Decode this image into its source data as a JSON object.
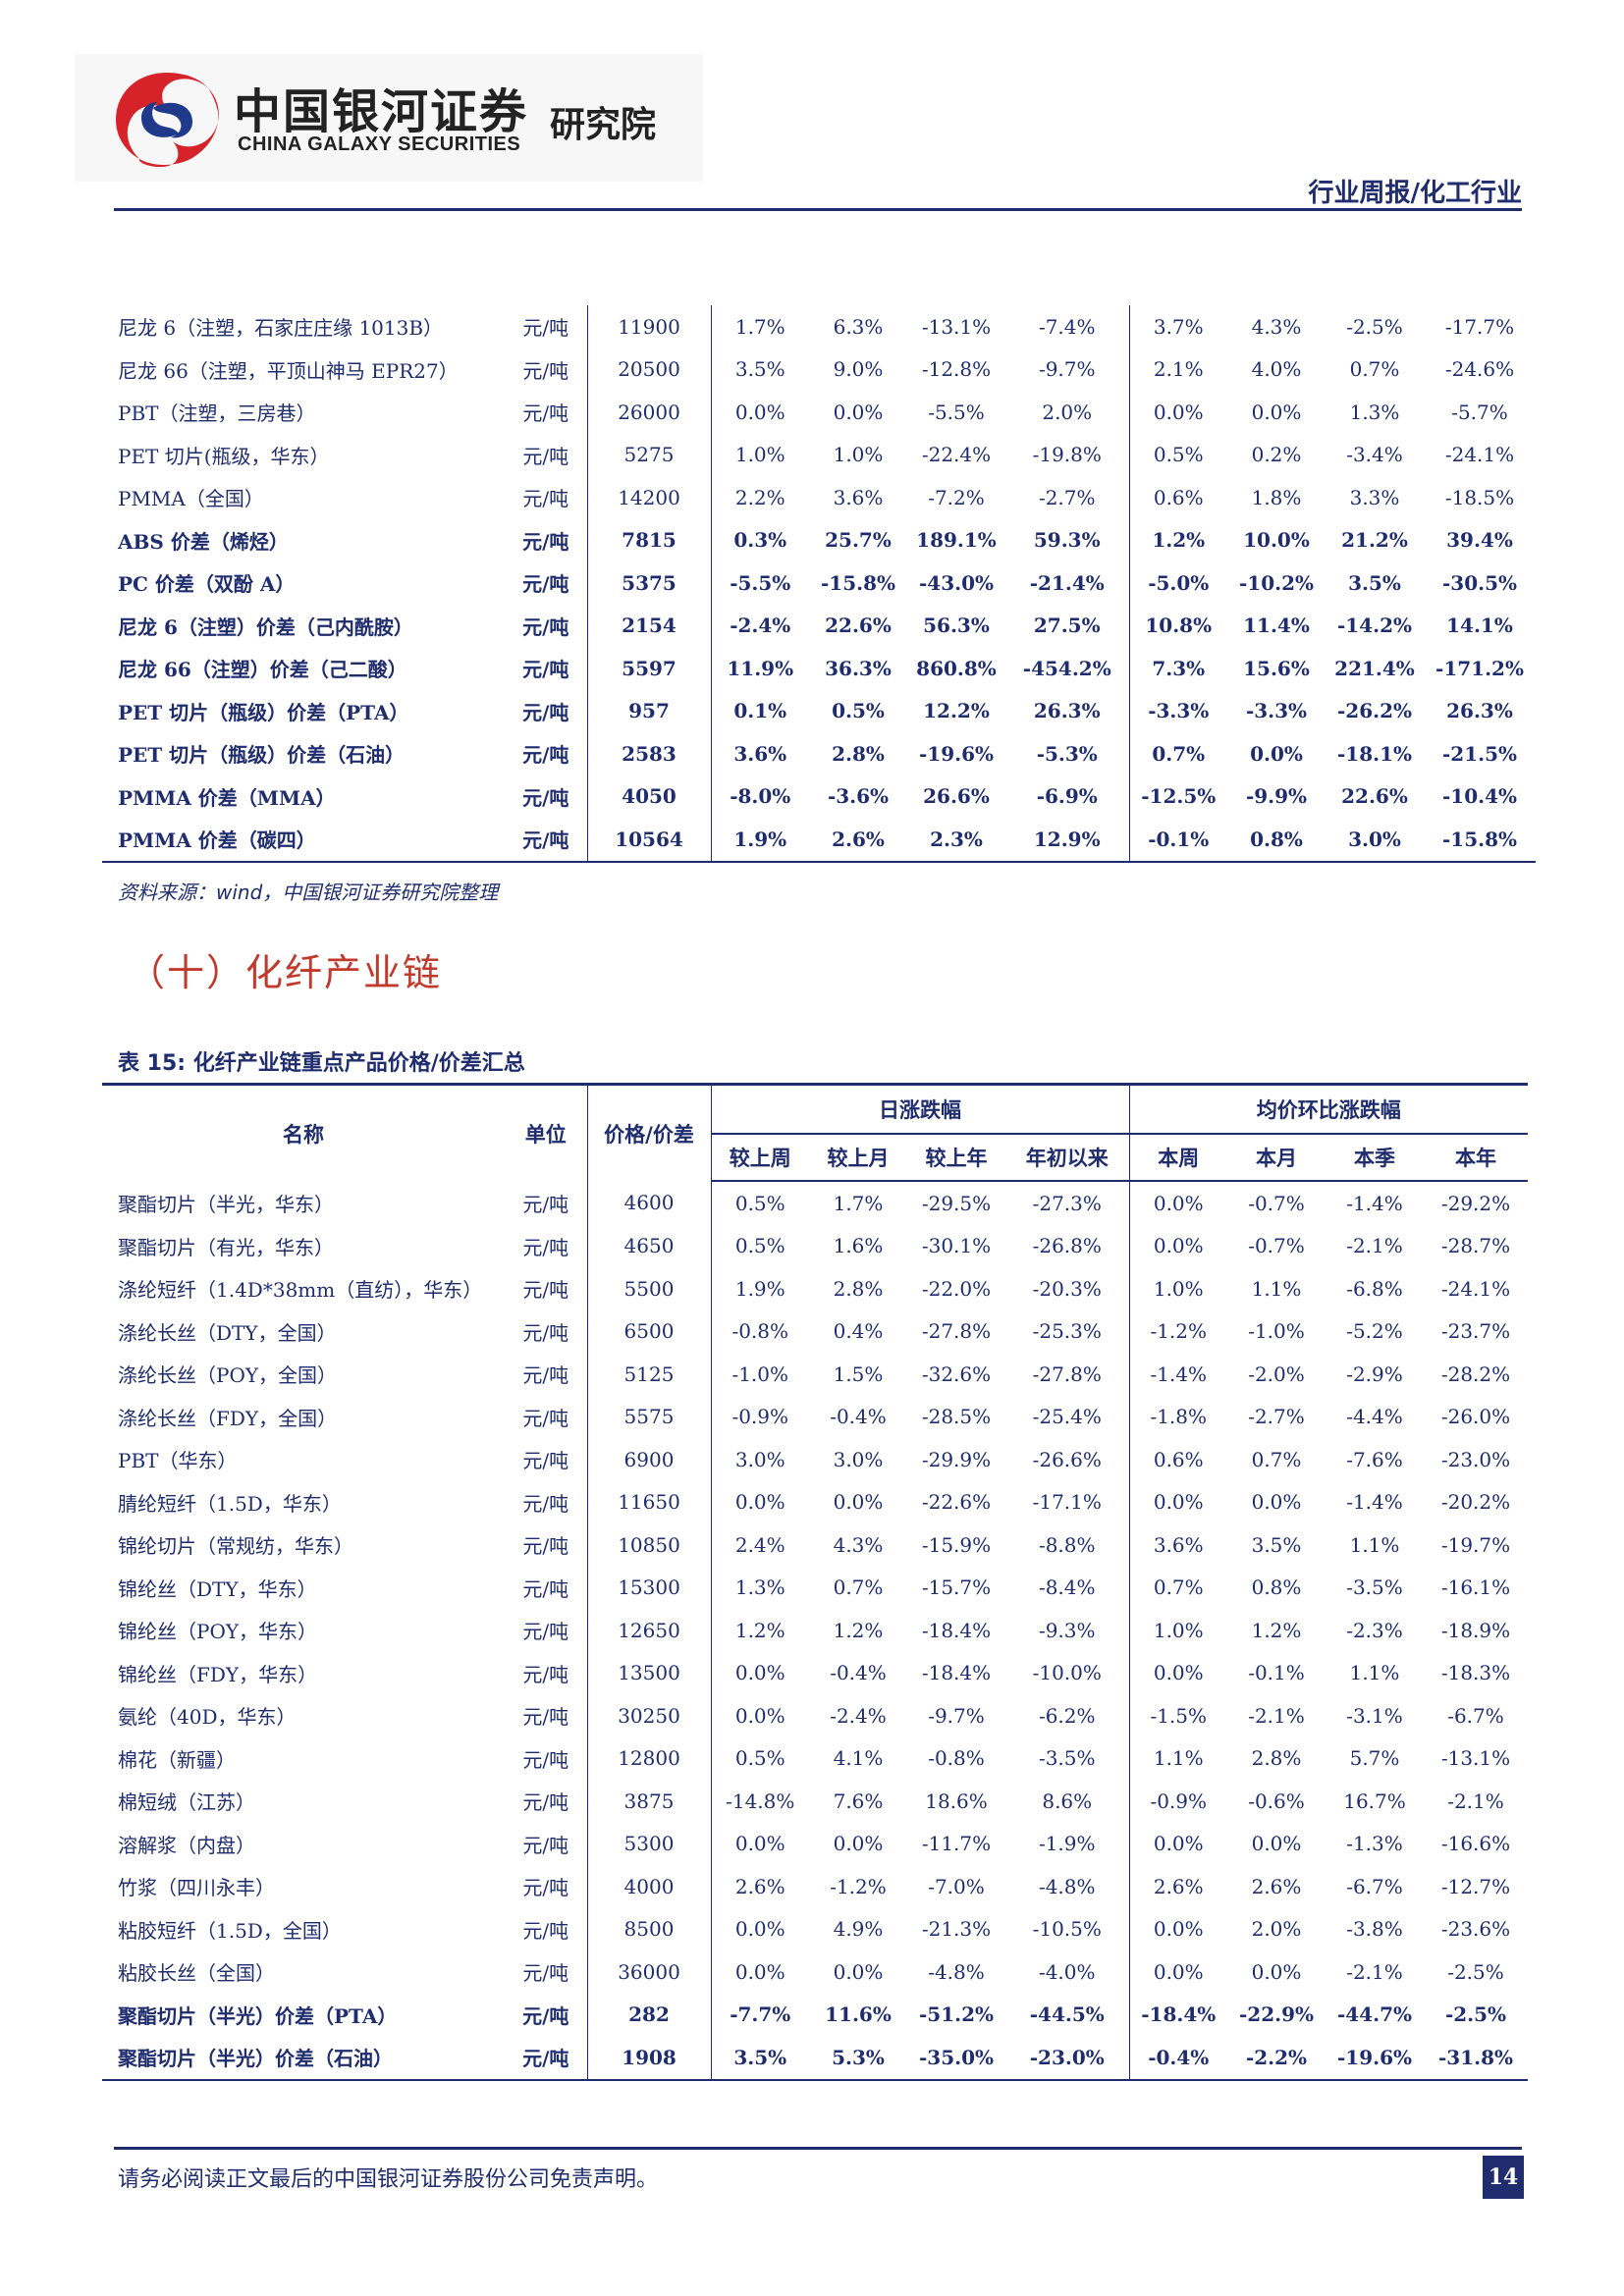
{
  "header": {
    "logo_cn": "中国银河证券",
    "logo_en": "CHINA GALAXY SECURITIES",
    "institute": "研究院",
    "report_type": "行业周报/化工行业",
    "logo_colors": {
      "red": "#d6232a",
      "blue": "#1f3a8a"
    }
  },
  "table1": {
    "rows": [
      {
        "name": "尼龙 6（注塑，石家庄庄缘 1013B）",
        "unit": "元/吨",
        "price": "11900",
        "v": [
          "1.7%",
          "6.3%",
          "-13.1%",
          "-7.4%",
          "3.7%",
          "4.3%",
          "-2.5%",
          "-17.7%"
        ],
        "bold": false
      },
      {
        "name": "尼龙 66（注塑，平顶山神马 EPR27）",
        "unit": "元/吨",
        "price": "20500",
        "v": [
          "3.5%",
          "9.0%",
          "-12.8%",
          "-9.7%",
          "2.1%",
          "4.0%",
          "0.7%",
          "-24.6%"
        ],
        "bold": false
      },
      {
        "name": "PBT（注塑，三房巷）",
        "unit": "元/吨",
        "price": "26000",
        "v": [
          "0.0%",
          "0.0%",
          "-5.5%",
          "2.0%",
          "0.0%",
          "0.0%",
          "1.3%",
          "-5.7%"
        ],
        "bold": false
      },
      {
        "name": "PET 切片(瓶级，华东）",
        "unit": "元/吨",
        "price": "5275",
        "v": [
          "1.0%",
          "1.0%",
          "-22.4%",
          "-19.8%",
          "0.5%",
          "0.2%",
          "-3.4%",
          "-24.1%"
        ],
        "bold": false
      },
      {
        "name": "PMMA（全国）",
        "unit": "元/吨",
        "price": "14200",
        "v": [
          "2.2%",
          "3.6%",
          "-7.2%",
          "-2.7%",
          "0.6%",
          "1.8%",
          "3.3%",
          "-18.5%"
        ],
        "bold": false
      },
      {
        "name": "ABS 价差（烯烃）",
        "unit": "元/吨",
        "price": "7815",
        "v": [
          "0.3%",
          "25.7%",
          "189.1%",
          "59.3%",
          "1.2%",
          "10.0%",
          "21.2%",
          "39.4%"
        ],
        "bold": true
      },
      {
        "name": "PC 价差（双酚 A）",
        "unit": "元/吨",
        "price": "5375",
        "v": [
          "-5.5%",
          "-15.8%",
          "-43.0%",
          "-21.4%",
          "-5.0%",
          "-10.2%",
          "3.5%",
          "-30.5%"
        ],
        "bold": true
      },
      {
        "name": "尼龙 6（注塑）价差（己内酰胺）",
        "unit": "元/吨",
        "price": "2154",
        "v": [
          "-2.4%",
          "22.6%",
          "56.3%",
          "27.5%",
          "10.8%",
          "11.4%",
          "-14.2%",
          "14.1%"
        ],
        "bold": true
      },
      {
        "name": "尼龙 66（注塑）价差（己二酸）",
        "unit": "元/吨",
        "price": "5597",
        "v": [
          "11.9%",
          "36.3%",
          "860.8%",
          "-454.2%",
          "7.3%",
          "15.6%",
          "221.4%",
          "-171.2%"
        ],
        "bold": true
      },
      {
        "name": "PET 切片（瓶级）价差（PTA）",
        "unit": "元/吨",
        "price": "957",
        "v": [
          "0.1%",
          "0.5%",
          "12.2%",
          "26.3%",
          "-3.3%",
          "-3.3%",
          "-26.2%",
          "26.3%"
        ],
        "bold": true
      },
      {
        "name": "PET 切片（瓶级）价差（石油）",
        "unit": "元/吨",
        "price": "2583",
        "v": [
          "3.6%",
          "2.8%",
          "-19.6%",
          "-5.3%",
          "0.7%",
          "0.0%",
          "-18.1%",
          "-21.5%"
        ],
        "bold": true
      },
      {
        "name": "PMMA 价差（MMA）",
        "unit": "元/吨",
        "price": "4050",
        "v": [
          "-8.0%",
          "-3.6%",
          "26.6%",
          "-6.9%",
          "-12.5%",
          "-9.9%",
          "22.6%",
          "-10.4%"
        ],
        "bold": true
      },
      {
        "name": "PMMA 价差（碳四）",
        "unit": "元/吨",
        "price": "10564",
        "v": [
          "1.9%",
          "2.6%",
          "2.3%",
          "12.9%",
          "-0.1%",
          "0.8%",
          "3.0%",
          "-15.8%"
        ],
        "bold": true
      }
    ]
  },
  "source_note": "资料来源：wind，中国银河证券研究院整理",
  "section_title": "（十）化纤产业链",
  "table2": {
    "caption": "表 15:  化纤产业链重点产品价格/价差汇总",
    "headers": {
      "name": "名称",
      "unit": "单位",
      "price": "价格/价差",
      "group1": "日涨跌幅",
      "group2": "均价环比涨跌幅",
      "sub": [
        "较上周",
        "较上月",
        "较上年",
        "年初以来",
        "本周",
        "本月",
        "本季",
        "本年"
      ]
    },
    "rows": [
      {
        "name": "聚酯切片（半光，华东）",
        "unit": "元/吨",
        "price": "4600",
        "v": [
          "0.5%",
          "1.7%",
          "-29.5%",
          "-27.3%",
          "0.0%",
          "-0.7%",
          "-1.4%",
          "-29.2%"
        ],
        "bold": false
      },
      {
        "name": "聚酯切片（有光，华东）",
        "unit": "元/吨",
        "price": "4650",
        "v": [
          "0.5%",
          "1.6%",
          "-30.1%",
          "-26.8%",
          "0.0%",
          "-0.7%",
          "-2.1%",
          "-28.7%"
        ],
        "bold": false
      },
      {
        "name": "涤纶短纤（1.4D*38mm（直纺），华东）",
        "unit": "元/吨",
        "price": "5500",
        "v": [
          "1.9%",
          "2.8%",
          "-22.0%",
          "-20.3%",
          "1.0%",
          "1.1%",
          "-6.8%",
          "-24.1%"
        ],
        "bold": false
      },
      {
        "name": "涤纶长丝（DTY，全国）",
        "unit": "元/吨",
        "price": "6500",
        "v": [
          "-0.8%",
          "0.4%",
          "-27.8%",
          "-25.3%",
          "-1.2%",
          "-1.0%",
          "-5.2%",
          "-23.7%"
        ],
        "bold": false
      },
      {
        "name": "涤纶长丝（POY，全国）",
        "unit": "元/吨",
        "price": "5125",
        "v": [
          "-1.0%",
          "1.5%",
          "-32.6%",
          "-27.8%",
          "-1.4%",
          "-2.0%",
          "-2.9%",
          "-28.2%"
        ],
        "bold": false
      },
      {
        "name": "涤纶长丝（FDY，全国）",
        "unit": "元/吨",
        "price": "5575",
        "v": [
          "-0.9%",
          "-0.4%",
          "-28.5%",
          "-25.4%",
          "-1.8%",
          "-2.7%",
          "-4.4%",
          "-26.0%"
        ],
        "bold": false
      },
      {
        "name": "PBT（华东）",
        "unit": "元/吨",
        "price": "6900",
        "v": [
          "3.0%",
          "3.0%",
          "-29.9%",
          "-26.6%",
          "0.6%",
          "0.7%",
          "-7.6%",
          "-23.0%"
        ],
        "bold": false
      },
      {
        "name": "腈纶短纤（1.5D，华东）",
        "unit": "元/吨",
        "price": "11650",
        "v": [
          "0.0%",
          "0.0%",
          "-22.6%",
          "-17.1%",
          "0.0%",
          "0.0%",
          "-1.4%",
          "-20.2%"
        ],
        "bold": false
      },
      {
        "name": "锦纶切片（常规纺，华东）",
        "unit": "元/吨",
        "price": "10850",
        "v": [
          "2.4%",
          "4.3%",
          "-15.9%",
          "-8.8%",
          "3.6%",
          "3.5%",
          "1.1%",
          "-19.7%"
        ],
        "bold": false
      },
      {
        "name": "锦纶丝（DTY，华东）",
        "unit": "元/吨",
        "price": "15300",
        "v": [
          "1.3%",
          "0.7%",
          "-15.7%",
          "-8.4%",
          "0.7%",
          "0.8%",
          "-3.5%",
          "-16.1%"
        ],
        "bold": false
      },
      {
        "name": "锦纶丝（POY，华东）",
        "unit": "元/吨",
        "price": "12650",
        "v": [
          "1.2%",
          "1.2%",
          "-18.4%",
          "-9.3%",
          "1.0%",
          "1.2%",
          "-2.3%",
          "-18.9%"
        ],
        "bold": false
      },
      {
        "name": "锦纶丝（FDY，华东）",
        "unit": "元/吨",
        "price": "13500",
        "v": [
          "0.0%",
          "-0.4%",
          "-18.4%",
          "-10.0%",
          "0.0%",
          "-0.1%",
          "1.1%",
          "-18.3%"
        ],
        "bold": false
      },
      {
        "name": "氨纶（40D，华东）",
        "unit": "元/吨",
        "price": "30250",
        "v": [
          "0.0%",
          "-2.4%",
          "-9.7%",
          "-6.2%",
          "-1.5%",
          "-2.1%",
          "-3.1%",
          "-6.7%"
        ],
        "bold": false
      },
      {
        "name": "棉花（新疆）",
        "unit": "元/吨",
        "price": "12800",
        "v": [
          "0.5%",
          "4.1%",
          "-0.8%",
          "-3.5%",
          "1.1%",
          "2.8%",
          "5.7%",
          "-13.1%"
        ],
        "bold": false
      },
      {
        "name": "棉短绒（江苏）",
        "unit": "元/吨",
        "price": "3875",
        "v": [
          "-14.8%",
          "7.6%",
          "18.6%",
          "8.6%",
          "-0.9%",
          "-0.6%",
          "16.7%",
          "-2.1%"
        ],
        "bold": false
      },
      {
        "name": "溶解浆（内盘）",
        "unit": "元/吨",
        "price": "5300",
        "v": [
          "0.0%",
          "0.0%",
          "-11.7%",
          "-1.9%",
          "0.0%",
          "0.0%",
          "-1.3%",
          "-16.6%"
        ],
        "bold": false
      },
      {
        "name": "竹浆（四川永丰）",
        "unit": "元/吨",
        "price": "4000",
        "v": [
          "2.6%",
          "-1.2%",
          "-7.0%",
          "-4.8%",
          "2.6%",
          "2.6%",
          "-6.7%",
          "-12.7%"
        ],
        "bold": false
      },
      {
        "name": "粘胶短纤（1.5D，全国）",
        "unit": "元/吨",
        "price": "8500",
        "v": [
          "0.0%",
          "4.9%",
          "-21.3%",
          "-10.5%",
          "0.0%",
          "2.0%",
          "-3.8%",
          "-23.6%"
        ],
        "bold": false
      },
      {
        "name": "粘胶长丝（全国）",
        "unit": "元/吨",
        "price": "36000",
        "v": [
          "0.0%",
          "0.0%",
          "-4.8%",
          "-4.0%",
          "0.0%",
          "0.0%",
          "-2.1%",
          "-2.5%"
        ],
        "bold": false
      },
      {
        "name": "聚酯切片（半光）价差（PTA）",
        "unit": "元/吨",
        "price": "282",
        "v": [
          "-7.7%",
          "11.6%",
          "-51.2%",
          "-44.5%",
          "-18.4%",
          "-22.9%",
          "-44.7%",
          "-2.5%"
        ],
        "bold": true
      },
      {
        "name": "聚酯切片（半光）价差（石油）",
        "unit": "元/吨",
        "price": "1908",
        "v": [
          "3.5%",
          "5.3%",
          "-35.0%",
          "-23.0%",
          "-0.4%",
          "-2.2%",
          "-19.6%",
          "-31.8%"
        ],
        "bold": true
      }
    ]
  },
  "footer": {
    "disclaimer": "请务必阅读正文最后的中国银河证券股份公司免责声明。",
    "page_number": "14"
  }
}
